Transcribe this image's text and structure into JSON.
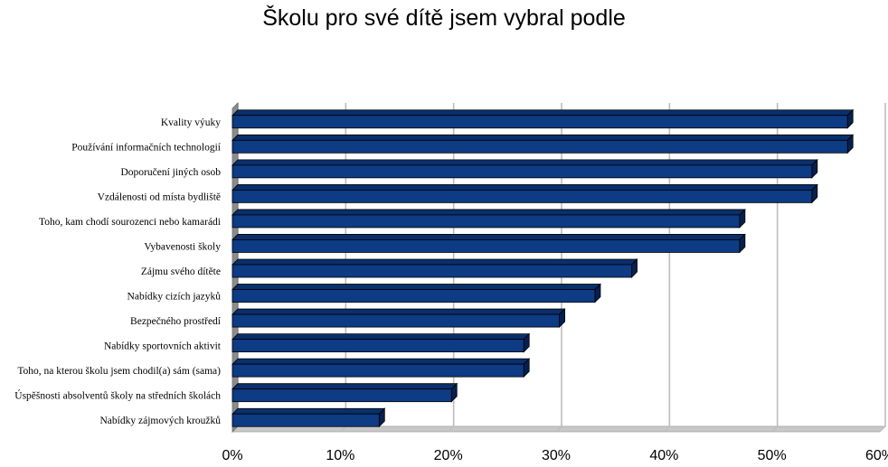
{
  "chart_data": {
    "type": "bar",
    "orientation": "horizontal",
    "title": "Školu pro své dítě jsem vybral podle",
    "categories": [
      "Kvality výuky",
      "Používání informačních technologií",
      "Doporučení jiných osob",
      "Vzdálenosti od místa bydliště",
      "Toho, kam chodí sourozenci nebo kamarádi",
      "Vybavenosti školy",
      "Zájmu svého dítěte",
      "Nabídky cizích jazyků",
      "Bezpečného prostředí",
      "Nabídky sportovních aktivit",
      "Toho, na kterou školu jsem chodil(a) sám (sama)",
      "Úspěšnosti absolventů školy na středních školách",
      "Nabídky zájmových kroužků"
    ],
    "values": [
      57,
      57,
      53.7,
      53.7,
      47,
      47,
      37,
      33.6,
      30.3,
      27,
      27,
      20.3,
      13.6
    ],
    "xlim": [
      0,
      60
    ],
    "x_ticks": [
      "0%",
      "10%",
      "20%",
      "30%",
      "40%",
      "50%",
      "60%"
    ],
    "x_tick_values": [
      0,
      10,
      20,
      30,
      40,
      50,
      60
    ],
    "grid": true,
    "legend": "none",
    "colors": {
      "bar_front": "#0d3b84",
      "bar_top": "#0a2f6c",
      "bar_side": "#06204e",
      "bar_outline": "#000000",
      "grid": "#bdbdbd",
      "wall_left": "#8c8c8c",
      "floor": "#c8c8c8"
    }
  }
}
